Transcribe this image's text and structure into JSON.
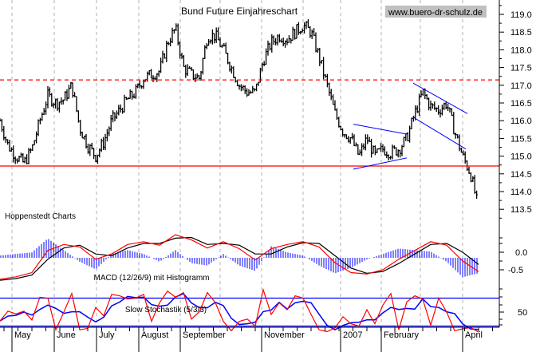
{
  "chart_data": {
    "type": "line",
    "title": "Bund Future Einjahreschart",
    "watermark": "www.buero-dr-schulz.de",
    "credit": "Hoppenstedt Charts",
    "x_tick_labels": [
      "May",
      "June",
      "July",
      "August",
      "September",
      "November",
      "2007",
      "February",
      "April"
    ],
    "grid": "vertical dashed",
    "price": {
      "style": "bar",
      "ylim": [
        113.5,
        119.0
      ],
      "y_tick_labels": [
        "113.5",
        "114.0",
        "114.5",
        "115.0",
        "115.5",
        "116.0",
        "116.5",
        "117.0",
        "117.5",
        "118.0",
        "118.5",
        "119.0"
      ],
      "closes": [
        116.0,
        115.3,
        115.0,
        114.8,
        115.2,
        116.0,
        116.7,
        116.5,
        116.6,
        117.0,
        115.8,
        115.3,
        115.0,
        115.4,
        116.0,
        116.3,
        116.6,
        116.8,
        117.2,
        117.3,
        117.4,
        118.2,
        118.6,
        117.5,
        117.3,
        117.2,
        118.4,
        118.4,
        118.0,
        117.5,
        117.0,
        116.8,
        116.8,
        117.7,
        118.2,
        118.4,
        118.3,
        118.5,
        118.7,
        118.5,
        117.8,
        117.0,
        116.2,
        115.7,
        115.5,
        115.0,
        115.5,
        115.0,
        115.2,
        115.1,
        115.2,
        115.5,
        116.2,
        116.8,
        116.4,
        116.3,
        116.5,
        115.7,
        115.0,
        114.5,
        113.5
      ],
      "horizontal_lines": [
        {
          "value": 117.15,
          "color": "#ff0000",
          "style": "dashed"
        },
        {
          "value": 114.72,
          "color": "#ff0000",
          "style": "solid"
        }
      ],
      "trendlines": [
        {
          "from": [
            44.3,
            115.9
          ],
          "to": [
            51.0,
            115.62
          ],
          "color": "#0000ff"
        },
        {
          "from": [
            44.3,
            114.63
          ],
          "to": [
            51.0,
            114.95
          ],
          "color": "#0000ff"
        },
        {
          "from": [
            51.8,
            117.06
          ],
          "to": [
            58.6,
            116.2
          ],
          "color": "#0000ff"
        },
        {
          "from": [
            51.8,
            116.1
          ],
          "to": [
            58.4,
            115.2
          ],
          "color": "#0000ff"
        }
      ]
    },
    "macd": {
      "label": "MACD (12/26/9) mit Histogramm",
      "y_tick_labels": [
        "0.0",
        "-0.5"
      ],
      "macd": [
        -0.77,
        -0.7,
        -0.58,
        0.05,
        0.22,
        0.15,
        -0.2,
        -0.05,
        0.22,
        0.3,
        0.2,
        0.5,
        0.35,
        0.12,
        0.3,
        0.1,
        -0.22,
        0.1,
        0.22,
        0.3,
        0.15,
        -0.3,
        -0.58,
        -0.62,
        -0.5,
        -0.2,
        0.05,
        0.3,
        0.2,
        -0.25,
        -0.55
      ],
      "signal": [
        -0.8,
        -0.75,
        -0.65,
        -0.2,
        0.12,
        0.2,
        -0.05,
        -0.1,
        0.12,
        0.25,
        0.25,
        0.4,
        0.42,
        0.22,
        0.25,
        0.2,
        -0.05,
        -0.05,
        0.15,
        0.27,
        0.25,
        -0.1,
        -0.45,
        -0.6,
        -0.55,
        -0.32,
        -0.05,
        0.22,
        0.25,
        0.0,
        -0.35
      ],
      "colors": {
        "macd": "#ff0000",
        "signal": "#000000",
        "histogram": "#0000ff"
      }
    },
    "stochastic": {
      "label": "Slow Stochastik (5/3/3)",
      "y_tick_labels": [
        "50"
      ],
      "levels": [
        80,
        20
      ],
      "k": [
        31,
        52,
        46,
        52,
        33,
        82,
        80,
        12,
        50,
        90,
        12,
        15,
        60,
        42,
        88,
        85,
        78,
        80,
        88,
        30,
        70,
        95,
        82,
        92,
        35,
        51,
        92,
        70,
        30,
        10,
        30,
        35,
        20,
        98,
        45,
        70,
        55,
        85,
        80,
        45,
        12,
        8,
        16,
        40,
        25,
        20,
        55,
        25,
        65,
        90,
        12,
        72,
        85,
        78,
        22,
        80,
        50,
        10,
        14,
        17,
        7
      ],
      "colors": {
        "k": "#ff0000",
        "d": "#0000ff"
      }
    }
  }
}
